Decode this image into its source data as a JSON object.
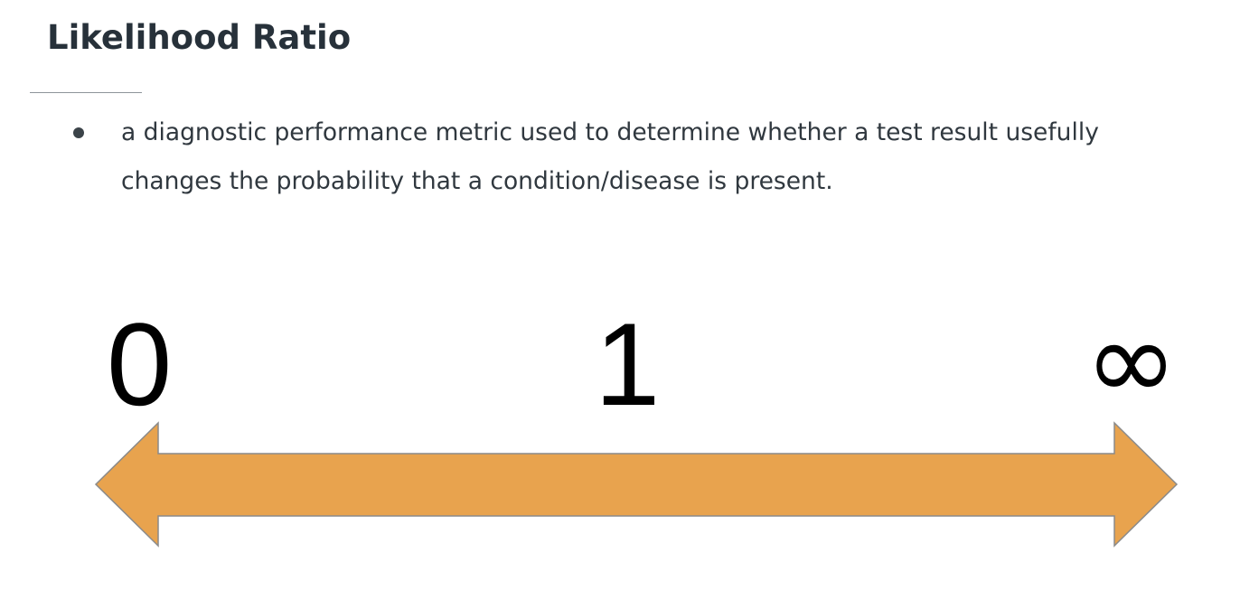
{
  "slide": {
    "title": "Likelihood Ratio",
    "bullet": "a diagnostic performance metric used to determine whether a test result usefully changes the probability that a condition/disease is present."
  },
  "scale": {
    "labels": {
      "min": "0",
      "mid": "1",
      "max": "∞"
    },
    "arrow_color": "#e8a34e",
    "arrow_stroke": "#8a8a8a",
    "arrow_style": "double-headed"
  }
}
